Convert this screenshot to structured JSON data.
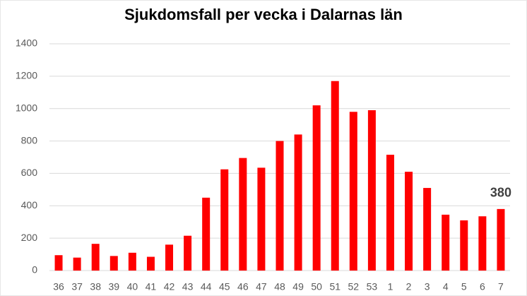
{
  "chart_data": {
    "type": "bar",
    "title": "Sjukdomsfall per vecka i Dalarnas län",
    "categories": [
      "36",
      "37",
      "38",
      "39",
      "40",
      "41",
      "42",
      "43",
      "44",
      "45",
      "46",
      "47",
      "48",
      "49",
      "50",
      "51",
      "52",
      "53",
      "1",
      "2",
      "3",
      "4",
      "5",
      "6",
      "7"
    ],
    "values": [
      95,
      80,
      165,
      90,
      110,
      85,
      160,
      215,
      450,
      625,
      695,
      635,
      800,
      840,
      1020,
      1170,
      980,
      990,
      715,
      610,
      510,
      345,
      310,
      335,
      380
    ],
    "value_labels": [
      null,
      null,
      null,
      null,
      null,
      null,
      null,
      null,
      null,
      null,
      null,
      null,
      null,
      null,
      null,
      null,
      null,
      null,
      null,
      null,
      null,
      null,
      null,
      null,
      "380"
    ],
    "color": "#ff0000",
    "ylim": [
      0,
      1400
    ],
    "yticks": [
      0,
      200,
      400,
      600,
      800,
      1000,
      1200,
      1400
    ],
    "grid": true
  }
}
